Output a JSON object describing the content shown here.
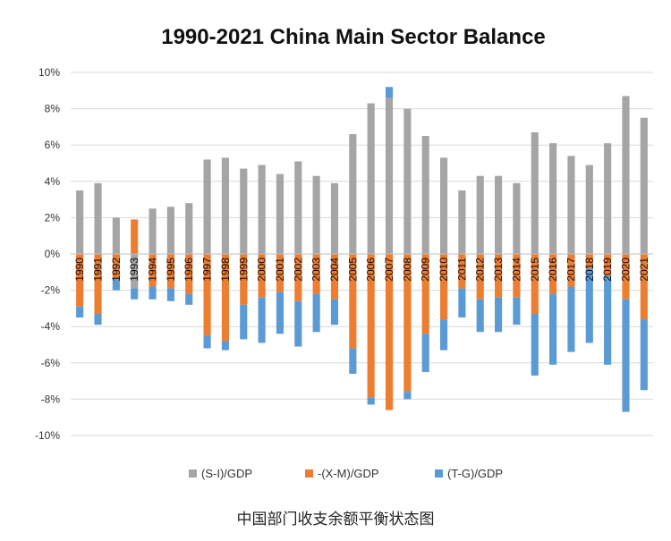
{
  "caption": "中国部门收支余额平衡状态图",
  "chart_data": {
    "type": "bar",
    "stacked": true,
    "title": "1990-2021 China Main Sector Balance",
    "xlabel": "",
    "ylabel": "",
    "ylim": [
      -10,
      10
    ],
    "yticks": [
      -10,
      -8,
      -6,
      -4,
      -2,
      0,
      2,
      4,
      6,
      8,
      10
    ],
    "ytick_labels": [
      "-10%",
      "-8%",
      "-6%",
      "-4%",
      "-2%",
      "0%",
      "2%",
      "4%",
      "6%",
      "8%",
      "10%"
    ],
    "grid": true,
    "legend_position": "bottom",
    "categories": [
      "1990",
      "1991",
      "1992",
      "1993",
      "1994",
      "1995",
      "1996",
      "1997",
      "1998",
      "1999",
      "2000",
      "2001",
      "2002",
      "2003",
      "2004",
      "2005",
      "2006",
      "2007",
      "2008",
      "2009",
      "2010",
      "2011",
      "2012",
      "2013",
      "2014",
      "2015",
      "2016",
      "2017",
      "2018",
      "2019",
      "2020",
      "2021"
    ],
    "series": [
      {
        "name": "(S-I)/GDP",
        "color": "#a5a5a5",
        "values": [
          3.5,
          3.9,
          2.0,
          -1.9,
          2.5,
          2.6,
          2.8,
          5.2,
          5.3,
          4.7,
          4.9,
          4.4,
          5.1,
          4.3,
          3.9,
          6.6,
          8.3,
          8.6,
          8.0,
          6.5,
          5.3,
          3.5,
          4.3,
          4.3,
          3.9,
          6.7,
          6.1,
          5.4,
          4.9,
          6.1,
          8.7,
          7.5
        ]
      },
      {
        "name": "-(X-M)/GDP",
        "color": "#ed7d31",
        "values": [
          -2.9,
          -3.3,
          -1.4,
          1.9,
          -1.8,
          -1.9,
          -2.2,
          -4.5,
          -4.8,
          -2.8,
          -2.4,
          -2.1,
          -2.6,
          -2.2,
          -2.5,
          -5.2,
          -7.9,
          -8.6,
          -7.6,
          -4.4,
          -3.6,
          -1.9,
          -2.5,
          -2.4,
          -2.4,
          -3.3,
          -2.2,
          -1.8,
          -0.8,
          -1.2,
          -2.5,
          -3.6
        ]
      },
      {
        "name": "(T-G)/GDP",
        "color": "#5b9bd5",
        "values": [
          -0.6,
          -0.6,
          -0.6,
          -0.6,
          -0.7,
          -0.7,
          -0.6,
          -0.7,
          -0.5,
          -1.9,
          -2.5,
          -2.3,
          -2.5,
          -2.1,
          -1.4,
          -1.4,
          -0.4,
          0.6,
          -0.4,
          -2.1,
          -1.7,
          -1.6,
          -1.8,
          -1.9,
          -1.5,
          -3.4,
          -3.9,
          -3.6,
          -4.1,
          -4.9,
          -6.2,
          -3.9
        ]
      }
    ]
  }
}
